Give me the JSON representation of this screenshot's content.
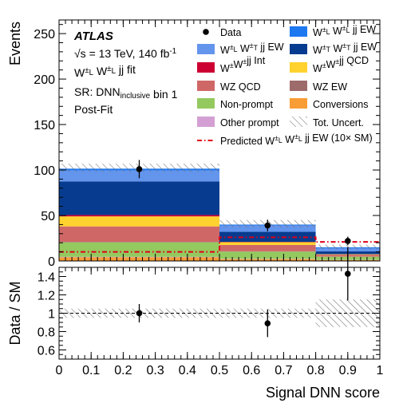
{
  "chart_data": [
    {
      "type": "bar",
      "panel": "main",
      "ylabel": "Events",
      "xlabel": "",
      "xlim": [
        0,
        1
      ],
      "ylim": [
        0,
        265
      ],
      "yticks": [
        0,
        50,
        100,
        150,
        200,
        250
      ],
      "bin_edges": [
        0,
        0.5,
        0.8,
        1.0
      ],
      "stack_order_bottom_to_top": [
        "Conversions",
        "Other prompt",
        "Non-prompt",
        "WZ EW",
        "WZ QCD",
        "W±W±jj QCD",
        "W±W±jj Int",
        "W±_T W±_T jj EW",
        "W±_L W±_T jj EW",
        "W±_L W±_L jj EW"
      ],
      "series": [
        {
          "name": "Conversions",
          "color": "#f89c35",
          "values": [
            4,
            2,
            1
          ]
        },
        {
          "name": "Other prompt",
          "color": "#d4a0d4",
          "values": [
            0.5,
            0.3,
            0.2
          ]
        },
        {
          "name": "Non-prompt",
          "color": "#94c95f",
          "values": [
            16,
            8,
            3.5
          ]
        },
        {
          "name": "WZ EW",
          "color": "#9e6b6b",
          "values": [
            0.5,
            0.3,
            0.2
          ]
        },
        {
          "name": "WZ QCD",
          "color": "#d06767",
          "values": [
            17,
            7,
            2
          ]
        },
        {
          "name": "W±W±jj QCD",
          "color": "#ffd22f",
          "values": [
            11,
            3,
            0.5
          ]
        },
        {
          "name": "W±W±jj Int",
          "color": "#cc0033",
          "values": [
            1.5,
            0.4,
            0.1
          ]
        },
        {
          "name": "W±_T W±_T jj EW",
          "color": "#063b8f",
          "values": [
            37,
            11,
            3
          ]
        },
        {
          "name": "W±_L W±_T jj EW",
          "color": "#6495ed",
          "values": [
            12,
            7,
            3.5
          ]
        },
        {
          "name": "W±_L W±_L jj EW",
          "color": "#1e78f0",
          "values": [
            2,
            1,
            1
          ]
        }
      ],
      "total_uncertainty_band": {
        "low": [
          98,
          37,
          13
        ],
        "high": [
          107,
          45,
          18
        ]
      },
      "data": {
        "name": "Data",
        "x": [
          0.25,
          0.65,
          0.9
        ],
        "y": [
          101,
          39,
          22
        ],
        "yerr": [
          10,
          6.3,
          4.7
        ]
      },
      "predicted_line": {
        "name": "Predicted W±_L W±_L jj EW (10× SM)",
        "color": "#e0001a",
        "values": [
          10,
          26,
          21
        ]
      }
    },
    {
      "type": "scatter",
      "panel": "ratio",
      "ylabel": "Data / SM",
      "xlabel": "Signal DNN score",
      "xlim": [
        0,
        1
      ],
      "ylim": [
        0.5,
        1.5
      ],
      "yticks": [
        0.6,
        0.8,
        1,
        1.2,
        1.4
      ],
      "xticks": [
        0,
        0.1,
        0.2,
        0.3,
        0.4,
        0.5,
        0.6,
        0.7,
        0.8,
        0.9,
        1
      ],
      "xtick_labels": [
        "0",
        "0.1",
        "0.2",
        "0.3",
        "0.4",
        "0.5",
        "0.6",
        "0.7",
        "0.8",
        "0.9",
        "1"
      ],
      "x": [
        0.25,
        0.65,
        0.9
      ],
      "y": [
        1.0,
        0.89,
        1.43
      ],
      "yerr": [
        0.1,
        0.15,
        0.29
      ],
      "uncertainty_band": {
        "low": [
          0.95,
          0.95,
          0.85
        ],
        "high": [
          1.05,
          1.05,
          1.15
        ]
      },
      "reference_line": 1
    }
  ],
  "annotations": {
    "experiment": "ATLAS",
    "energy": "√s = 13 TeV, 140 fb⁻¹",
    "fit": "W±_L W±_L jj fit",
    "region": "SR: DNN_inclusive bin 1",
    "stage": "Post-Fit"
  },
  "legend": {
    "placement": "top-right",
    "entries": [
      {
        "label": "Data",
        "kind": "marker"
      },
      {
        "label": "W±_L W±_L jj EW",
        "kind": "fill",
        "color": "#1e78f0"
      },
      {
        "label": "W±_L W±_T jj EW",
        "kind": "fill",
        "color": "#6495ed"
      },
      {
        "label": "W±_T W±_T jj EW",
        "kind": "fill",
        "color": "#063b8f"
      },
      {
        "label": "W±W±jj Int",
        "kind": "fill",
        "color": "#cc0033"
      },
      {
        "label": "W±W±jj QCD",
        "kind": "fill",
        "color": "#ffd22f"
      },
      {
        "label": "WZ QCD",
        "kind": "fill",
        "color": "#d06767"
      },
      {
        "label": "WZ EW",
        "kind": "fill",
        "color": "#9e6b6b"
      },
      {
        "label": "Non-prompt",
        "kind": "fill",
        "color": "#94c95f"
      },
      {
        "label": "Conversions",
        "kind": "fill",
        "color": "#f89c35"
      },
      {
        "label": "Other prompt",
        "kind": "fill",
        "color": "#d4a0d4"
      },
      {
        "label": "Tot. Uncert.",
        "kind": "hatch"
      },
      {
        "label": "Predicted W±_L W±_L jj EW (10× SM)",
        "kind": "dashdot",
        "color": "#e0001a"
      }
    ]
  }
}
